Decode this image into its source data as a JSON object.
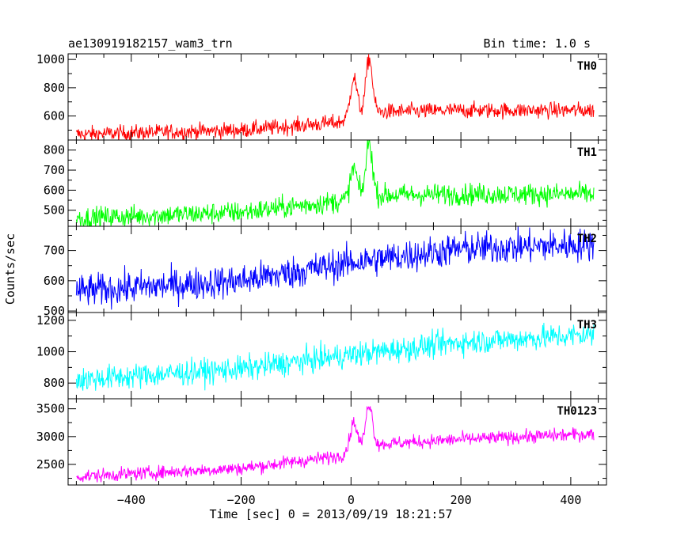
{
  "header": {
    "left": "ae130919182157_wam3_trn",
    "right": "Bin time: 1.0 s"
  },
  "chart_data": {
    "type": "line",
    "xlabel": "Time [sec] 0 = 2013/09/19 18:21:57",
    "ylabel": "Counts/sec",
    "xlim": [
      -515,
      465
    ],
    "x_ticks": [
      -400,
      -200,
      0,
      200,
      400
    ],
    "x_tick_labels": [
      "−400",
      "−200",
      "0",
      "200",
      "400"
    ],
    "data_x_range": [
      -500,
      442
    ],
    "panels": [
      {
        "name": "TH0",
        "color": "#ff0000",
        "ylim": [
          430,
          1040
        ],
        "yticks": [
          600,
          800,
          1000
        ],
        "trend": [
          [
            -500,
            470
          ],
          [
            -200,
            500
          ],
          [
            -20,
            555
          ],
          [
            0,
            600
          ],
          [
            60,
            630
          ],
          [
            200,
            640
          ],
          [
            442,
            640
          ]
        ],
        "noise": 28,
        "peaks": [
          {
            "t": 5,
            "height": 270,
            "width": 6
          },
          {
            "t": 33,
            "height": 390,
            "width": 6
          }
        ]
      },
      {
        "name": "TH1",
        "color": "#00ff00",
        "ylim": [
          420,
          850
        ],
        "yticks": [
          500,
          600,
          700,
          800
        ],
        "trend": [
          [
            -500,
            460
          ],
          [
            -200,
            490
          ],
          [
            -20,
            545
          ],
          [
            0,
            560
          ],
          [
            60,
            575
          ],
          [
            200,
            580
          ],
          [
            442,
            580
          ]
        ],
        "noise": 27,
        "peaks": [
          {
            "t": 5,
            "height": 150,
            "width": 6
          },
          {
            "t": 33,
            "height": 270,
            "width": 6
          }
        ]
      },
      {
        "name": "TH2",
        "color": "#0000ff",
        "ylim": [
          495,
          780
        ],
        "yticks": [
          500,
          600,
          700
        ],
        "trend": [
          [
            -500,
            565
          ],
          [
            -200,
            600
          ],
          [
            0,
            660
          ],
          [
            200,
            705
          ],
          [
            442,
            720
          ]
        ],
        "noise": 27,
        "peaks": []
      },
      {
        "name": "TH3",
        "color": "#00ffff",
        "ylim": [
          700,
          1250
        ],
        "yticks": [
          800,
          1000,
          1200
        ],
        "trend": [
          [
            -500,
            820
          ],
          [
            -200,
            890
          ],
          [
            0,
            980
          ],
          [
            200,
            1060
          ],
          [
            442,
            1110
          ]
        ],
        "noise": 40,
        "peaks": []
      },
      {
        "name": "TH0123",
        "color": "#ff00ff",
        "ylim": [
          2130,
          3680
        ],
        "yticks": [
          2500,
          3000,
          3500
        ],
        "trend": [
          [
            -500,
            2280
          ],
          [
            -200,
            2430
          ],
          [
            -20,
            2650
          ],
          [
            0,
            2800
          ],
          [
            60,
            2870
          ],
          [
            200,
            2950
          ],
          [
            442,
            3050
          ]
        ],
        "noise": 60,
        "peaks": [
          {
            "t": 5,
            "height": 450,
            "width": 6
          },
          {
            "t": 33,
            "height": 760,
            "width": 6
          }
        ]
      }
    ]
  }
}
